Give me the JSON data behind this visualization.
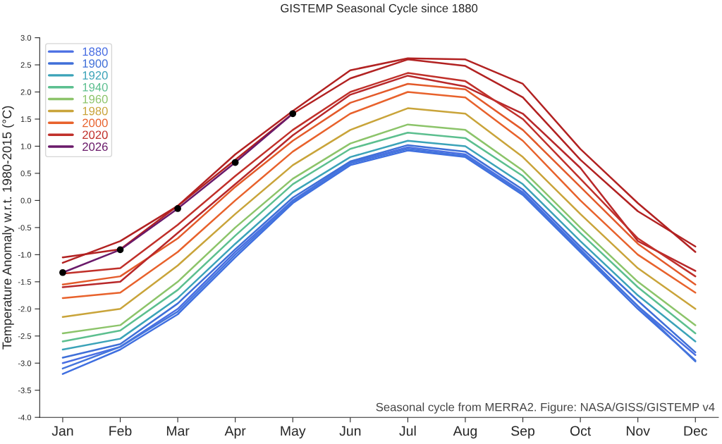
{
  "chart_data": {
    "type": "line",
    "title": "GISTEMP Seasonal Cycle since 1880",
    "ylabel": "Temperature Anomaly w.r.t. 1980-2015 (°C)",
    "categories": [
      "Jan",
      "Feb",
      "Mar",
      "Apr",
      "May",
      "Jun",
      "Jul",
      "Aug",
      "Sep",
      "Oct",
      "Nov",
      "Dec"
    ],
    "ylim": [
      -4.0,
      3.0
    ],
    "yticks": [
      {
        "value": -4.0,
        "label": "-4.0"
      },
      {
        "value": -3.5,
        "label": "-3.5"
      },
      {
        "value": -3.0,
        "label": "-3.0"
      },
      {
        "value": -2.5,
        "label": "-2.5"
      },
      {
        "value": -2.0,
        "label": "-2.0"
      },
      {
        "value": -1.5,
        "label": "-1.5"
      },
      {
        "value": -1.0,
        "label": "-1.0"
      },
      {
        "value": -0.5,
        "label": "-0.5"
      },
      {
        "value": 0.0,
        "label": "0.0"
      },
      {
        "value": 0.5,
        "label": "0.5"
      },
      {
        "value": 1.0,
        "label": "1.0"
      },
      {
        "value": 1.5,
        "label": "1.5"
      },
      {
        "value": 2.0,
        "label": "2.0"
      },
      {
        "value": 2.5,
        "label": "2.5"
      },
      {
        "value": 3.0,
        "label": "3.0"
      }
    ],
    "grid": false,
    "legend": "top left",
    "marker": "none",
    "line_style": "solid",
    "series": [
      {
        "name": "1880",
        "color": "#4a6fe3",
        "values": [
          -3.0,
          -2.7,
          -2.0,
          -0.95,
          0.0,
          0.7,
          0.98,
          0.85,
          0.15,
          -0.9,
          -1.95,
          -2.85
        ]
      },
      {
        "color": "#3f6fe0",
        "values": [
          -3.2,
          -2.75,
          -2.1,
          -1.05,
          -0.05,
          0.65,
          0.92,
          0.8,
          0.1,
          -0.95,
          -2.0,
          -2.95
        ]
      },
      {
        "name": "1900",
        "color": "#3f6fd8",
        "values": [
          -2.9,
          -2.65,
          -1.9,
          -0.9,
          0.05,
          0.72,
          1.02,
          0.9,
          0.2,
          -0.85,
          -1.85,
          -2.8
        ]
      },
      {
        "color": "#4575dc",
        "values": [
          -3.1,
          -2.7,
          -2.05,
          -1.0,
          -0.02,
          0.68,
          0.95,
          0.82,
          0.12,
          -0.92,
          -1.95,
          -2.97
        ]
      },
      {
        "name": "1920",
        "color": "#3ba3b8",
        "values": [
          -2.75,
          -2.55,
          -1.8,
          -0.8,
          0.15,
          0.8,
          1.1,
          1.0,
          0.3,
          -0.75,
          -1.75,
          -2.6
        ]
      },
      {
        "name": "1940",
        "color": "#5cbf8f",
        "values": [
          -2.6,
          -2.4,
          -1.65,
          -0.65,
          0.3,
          0.95,
          1.25,
          1.15,
          0.45,
          -0.6,
          -1.6,
          -2.45
        ]
      },
      {
        "name": "1960",
        "color": "#8cc46a",
        "values": [
          -2.45,
          -2.3,
          -1.5,
          -0.5,
          0.4,
          1.05,
          1.4,
          1.3,
          0.55,
          -0.5,
          -1.5,
          -2.3
        ]
      },
      {
        "name": "1980",
        "color": "#c9a43a",
        "values": [
          -2.15,
          -2.0,
          -1.2,
          -0.25,
          0.65,
          1.3,
          1.7,
          1.6,
          0.8,
          -0.25,
          -1.25,
          -2.0
        ]
      },
      {
        "name": "2000",
        "color": "#e8622c",
        "values": [
          -1.8,
          -1.7,
          -0.95,
          0.0,
          0.9,
          1.6,
          2.0,
          1.9,
          1.1,
          0.0,
          -1.0,
          -1.7
        ]
      },
      {
        "color": "#e35a2a",
        "values": [
          -1.55,
          -1.4,
          -0.7,
          0.25,
          1.1,
          1.8,
          2.15,
          2.05,
          1.3,
          0.25,
          -0.8,
          -1.55
        ]
      },
      {
        "color": "#b8282a",
        "values": [
          -1.6,
          -1.5,
          -0.6,
          0.3,
          1.2,
          1.95,
          2.3,
          2.1,
          1.6,
          0.6,
          -0.75,
          -1.3
        ]
      },
      {
        "name": "2020",
        "color": "#c0302a",
        "values": [
          -1.35,
          -1.25,
          -0.45,
          0.45,
          1.3,
          2.0,
          2.35,
          2.2,
          1.5,
          0.4,
          -0.7,
          -1.4
        ]
      },
      {
        "color": "#b22222",
        "values": [
          -1.15,
          -0.75,
          -0.1,
          0.75,
          1.6,
          2.25,
          2.6,
          2.48,
          1.9,
          0.75,
          -0.2,
          -0.85
        ]
      },
      {
        "color": "#b22222",
        "values": [
          -1.05,
          -0.9,
          -0.1,
          0.85,
          1.65,
          2.4,
          2.62,
          2.6,
          2.15,
          0.95,
          -0.05,
          -0.95
        ]
      },
      {
        "name": "2026",
        "color": "#6a1a6a",
        "values": [
          -1.33,
          -0.91,
          -0.15,
          0.7,
          1.6,
          null,
          null,
          null,
          null,
          null,
          null,
          null
        ]
      },
      {
        "type": "scatter",
        "color": "#000000",
        "marker": "circle",
        "values": [
          -1.33,
          -0.91,
          -0.15,
          0.7,
          1.6,
          null,
          null,
          null,
          null,
          null,
          null,
          null
        ]
      }
    ],
    "annotations": [
      "Seasonal cycle from MERRA2. Figure: NASA/GISS/GISTEMP v4"
    ]
  }
}
